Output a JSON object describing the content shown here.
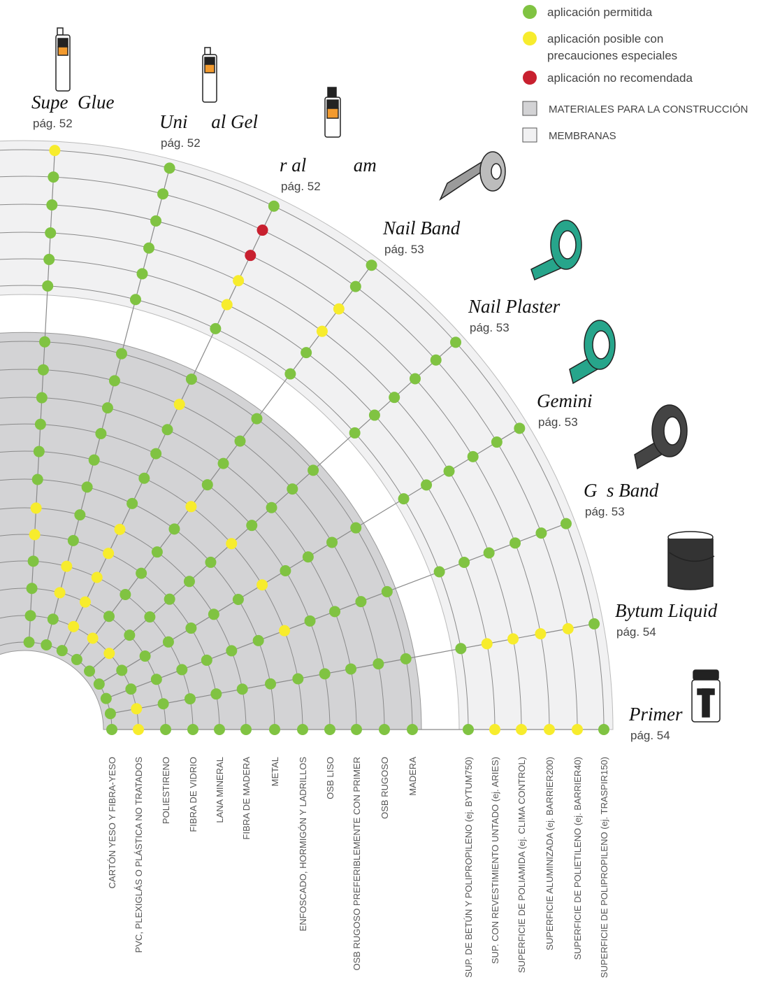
{
  "legend": {
    "status": [
      {
        "label": [
          "aplicación permitida"
        ],
        "color": "#80c342"
      },
      {
        "label": [
          "aplicación posible con",
          "precauciones especiales"
        ],
        "color": "#f7ec2d"
      },
      {
        "label": [
          "aplicación no recomendada"
        ],
        "color": "#c8202f"
      }
    ]
  },
  "zones": [
    {
      "label": "MATERIALES PARA LA CONSTRUCCIÓN",
      "color": "#d3d3d5",
      "materials": [
        "CARTÓN YESO Y FIBRA-YESO",
        "PVC, PLEXIGLÁS O PLÁSTICA NO TRATADOS",
        "POLIESTIRENO",
        "FIBRA DE VIDRIO",
        "LANA MINERAL",
        "FIBRA DE MADERA",
        "METAL",
        "ENFOSCADO, HORMIGÓN Y LADRILLOS",
        "OSB LISO",
        "OSB RUGOSO PREFERIBLEMENTE CON PRIMER",
        "OSB RUGOSO",
        "MADERA"
      ]
    },
    {
      "label": "MEMBRANAS",
      "color": "#f1f1f2",
      "materials": [
        "SUP. DE BETÚN Y POLIPROPILENO (ej. BYTUM750)",
        "SUP. CON REVESTIMIENTO UNTADO (ej. ARIES)",
        "SUPERFICIE DE POLIAMIDA (ej. CLIMA CONTROL)",
        "SUPERFICIE ALUMINIZADA (ej. BARRIER200)",
        "SUPERFICIE DE POLIETILENO (ej. BARRIER40)",
        "SUPERFICIE DE POLIPROPILENO (ej. TRASPIR150)"
      ]
    }
  ],
  "products": [
    {
      "name": "Supe  Glue",
      "page": "pág. 52",
      "values": [
        0,
        0,
        0,
        0,
        1,
        1,
        0,
        0,
        0,
        0,
        0,
        0,
        0,
        0,
        0,
        0,
        0,
        1
      ]
    },
    {
      "name": "Uni     al Gel",
      "page": "pág. 52",
      "values": [
        0,
        0,
        1,
        1,
        0,
        0,
        0,
        0,
        0,
        0,
        0,
        0,
        0,
        0,
        0,
        0,
        0,
        0
      ]
    },
    {
      "name": "r al          am",
      "page": "pág. 52",
      "values": [
        0,
        1,
        1,
        1,
        1,
        1,
        0,
        0,
        0,
        0,
        1,
        0,
        0,
        1,
        1,
        2,
        2,
        0
      ]
    },
    {
      "name": "Nail Band",
      "page": "pág. 53",
      "values": [
        0,
        1,
        0,
        0,
        0,
        0,
        0,
        1,
        0,
        0,
        0,
        0,
        0,
        0,
        1,
        1,
        0,
        0
      ]
    },
    {
      "name": "Nail Plaster",
      "page": "pág. 53",
      "values": [
        0,
        1,
        0,
        0,
        0,
        0,
        0,
        1,
        0,
        0,
        0,
        0,
        0,
        0,
        0,
        0,
        0,
        0
      ]
    },
    {
      "name": "Gemini",
      "page": "pág. 53",
      "values": [
        0,
        0,
        0,
        0,
        0,
        0,
        0,
        1,
        0,
        0,
        0,
        0,
        0,
        0,
        0,
        0,
        0,
        0
      ]
    },
    {
      "name": "G  s Band",
      "page": "pág. 53",
      "values": [
        0,
        0,
        0,
        0,
        0,
        0,
        0,
        1,
        0,
        0,
        0,
        0,
        0,
        0,
        0,
        0,
        0,
        0
      ]
    },
    {
      "name": "Bytum Liquid",
      "page": "pág. 54",
      "values": [
        0,
        1,
        0,
        0,
        0,
        0,
        0,
        0,
        0,
        0,
        0,
        0,
        0,
        1,
        1,
        1,
        1,
        0
      ]
    },
    {
      "name": "Primer",
      "page": "pág. 54",
      "values": [
        0,
        1,
        0,
        0,
        0,
        0,
        0,
        0,
        0,
        0,
        0,
        0,
        0,
        1,
        1,
        1,
        1,
        0
      ]
    }
  ]
}
